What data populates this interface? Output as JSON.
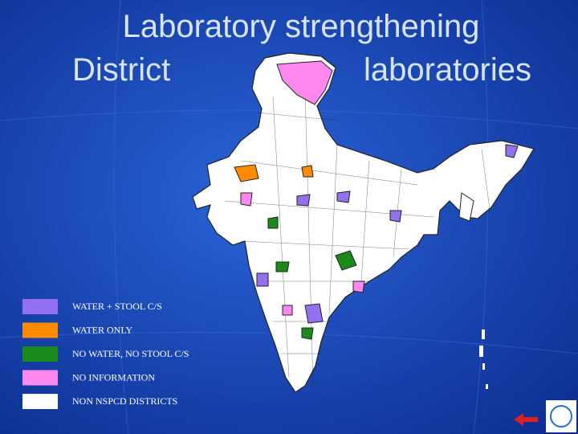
{
  "title": {
    "line1": "Laboratory strengthening",
    "line2_left": "District",
    "line2_right": "laboratories"
  },
  "legend": [
    {
      "label": "WATER + STOOL C/S",
      "color": "#9370f0"
    },
    {
      "label": "WATER ONLY",
      "color": "#ff8c00"
    },
    {
      "label": "NO WATER, NO STOOL C/S",
      "color": "#1a8a1a"
    },
    {
      "label": "NO INFORMATION",
      "color": "#ff88ee"
    },
    {
      "label": "NON NSPCD DISTRICTS",
      "color": "#ffffff"
    }
  ]
}
